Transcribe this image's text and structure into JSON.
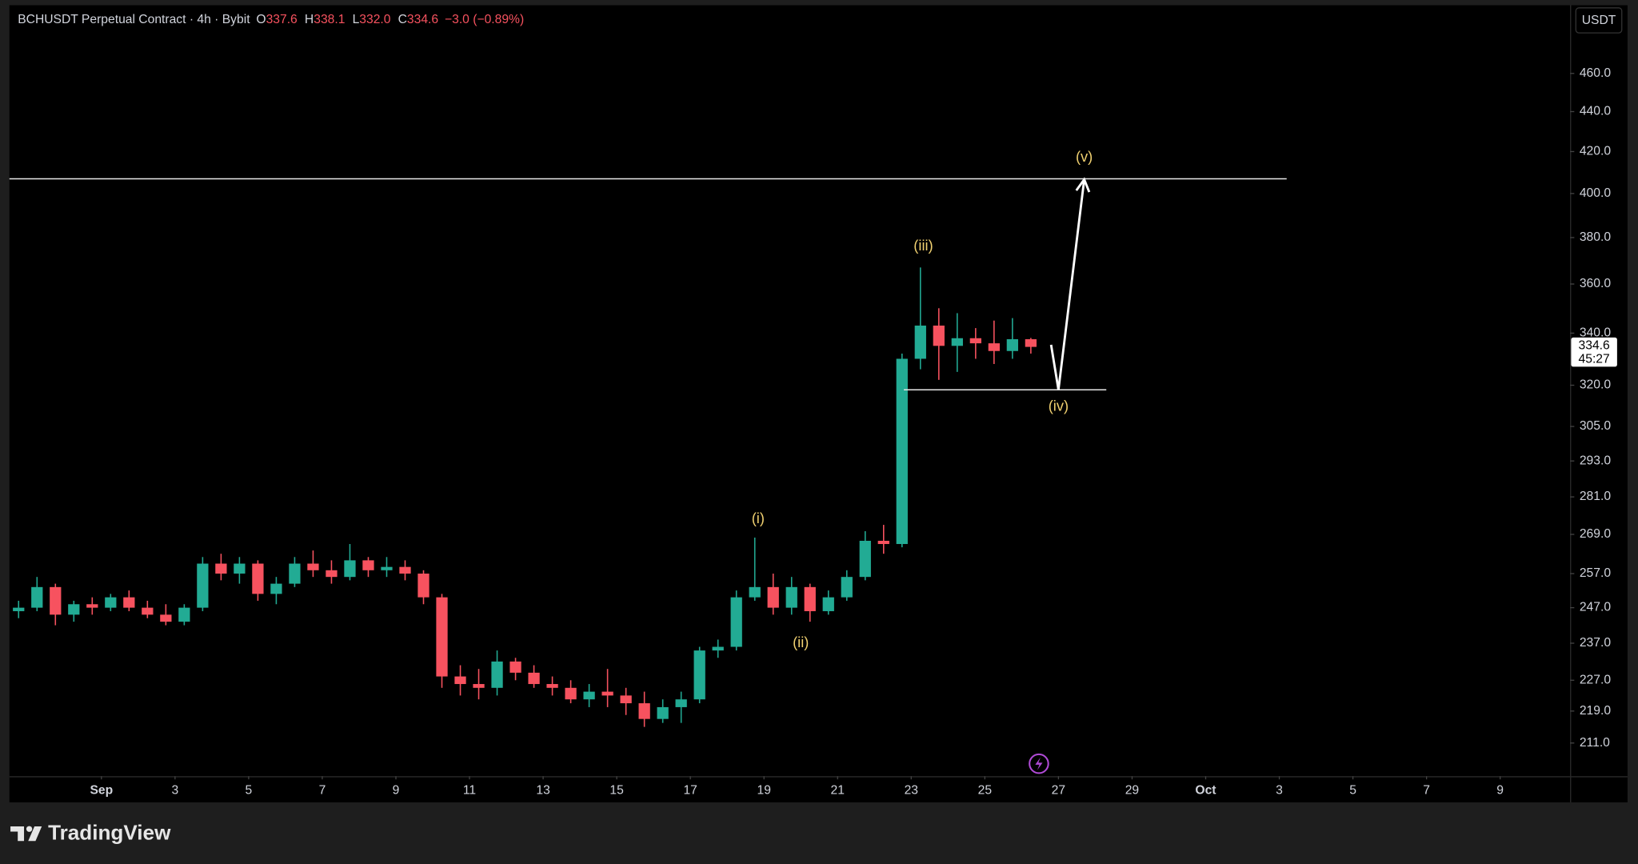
{
  "header": {
    "title": "BCHUSDT Perpetual Contract · 4h · Bybit",
    "ohlc": [
      {
        "label": "O",
        "value": "337.6"
      },
      {
        "label": "H",
        "value": "338.1"
      },
      {
        "label": "L",
        "value": "332.0"
      },
      {
        "label": "C",
        "value": "334.6"
      }
    ],
    "change": "−3.0 (−0.89%)"
  },
  "chart_data": {
    "type": "candlestick",
    "currency": "USDT",
    "log_scale": true,
    "up_color": "#22ab94",
    "down_color": "#f7525f",
    "x": [
      -1.25,
      -0.75,
      -0.25,
      0.25,
      0.75,
      1.25,
      1.75,
      2.25,
      2.75,
      3.25,
      3.75,
      4.25,
      4.75,
      5.25,
      5.75,
      6.25,
      6.75,
      7.25,
      7.75,
      8.25,
      8.75,
      9.25,
      9.75,
      10.25,
      10.75,
      11.25,
      11.75,
      12.25,
      12.75,
      13.25,
      13.75,
      14.25,
      14.75,
      15.25,
      15.75,
      16.25,
      16.75,
      17.25,
      17.75,
      18.25,
      18.75,
      19.25,
      19.75,
      20.25,
      20.75,
      21.25,
      21.75,
      22.25,
      22.75,
      23.25,
      23.75,
      24.25,
      24.75,
      25.25,
      25.75,
      26.25
    ],
    "open": [
      246,
      247,
      253,
      245,
      248,
      247,
      250,
      247,
      245,
      243,
      247,
      260,
      257,
      260,
      251,
      254,
      260,
      258,
      256,
      261,
      258,
      259,
      257,
      250,
      228,
      226,
      225,
      232,
      229,
      226,
      225,
      222,
      224,
      223,
      221,
      217,
      220,
      222,
      235,
      236,
      250,
      253,
      247,
      253,
      246,
      250,
      256,
      267,
      266,
      330,
      343,
      335,
      338,
      336,
      333,
      337.6
    ],
    "high": [
      249,
      256,
      254,
      249,
      250,
      251,
      252,
      249,
      248,
      248,
      262,
      263,
      262,
      261,
      256,
      262,
      264,
      261,
      266,
      262,
      262,
      261,
      258,
      251,
      231,
      230,
      235,
      233,
      231,
      228,
      227,
      226,
      230,
      225,
      224,
      222,
      224,
      236,
      238,
      252,
      268,
      257,
      256,
      254,
      252,
      258,
      270,
      272,
      332,
      367,
      350,
      348,
      342,
      345,
      346,
      338.1
    ],
    "low": [
      244,
      246,
      242,
      243,
      245,
      246,
      246,
      244,
      242,
      242,
      246,
      255,
      254,
      249,
      248,
      253,
      256,
      254,
      255,
      256,
      256,
      255,
      248,
      225,
      223,
      222,
      223,
      227,
      225,
      223,
      221,
      220,
      220,
      218,
      215,
      216,
      216,
      221,
      233,
      235,
      249,
      245,
      245,
      243,
      245,
      249,
      255,
      263,
      265,
      326,
      322,
      325,
      330,
      328,
      330,
      332.0
    ],
    "close": [
      247,
      253,
      245,
      248,
      247,
      250,
      247,
      245,
      243,
      247,
      260,
      257,
      260,
      251,
      254,
      260,
      258,
      256,
      261,
      258,
      259,
      257,
      250,
      228,
      226,
      225,
      232,
      229,
      226,
      225,
      222,
      224,
      223,
      221,
      217,
      220,
      222,
      235,
      236,
      250,
      253,
      247,
      253,
      246,
      250,
      256,
      267,
      266,
      330,
      343,
      335,
      338,
      336,
      333,
      337.6,
      334.6
    ],
    "xlim": [
      -1.5,
      40.9
    ],
    "xticks": [
      {
        "value": 1,
        "label": "Sep"
      },
      3,
      5,
      7,
      9,
      11,
      13,
      15,
      17,
      19,
      21,
      23,
      25,
      27,
      29,
      {
        "value": 31,
        "label": "Oct"
      },
      {
        "value": 33,
        "label": "3"
      },
      {
        "value": 35,
        "label": "5"
      },
      {
        "value": 37,
        "label": "7"
      },
      {
        "value": 39,
        "label": "9"
      }
    ],
    "ylim": [
      203,
      498
    ],
    "yticks": [
      {
        "value": 211,
        "label": "211.0"
      },
      {
        "value": 219,
        "label": "219.0"
      },
      {
        "value": 227,
        "label": "227.0"
      },
      {
        "value": 237,
        "label": "237.0"
      },
      {
        "value": 247,
        "label": "247.0"
      },
      {
        "value": 257,
        "label": "257.0"
      },
      {
        "value": 269,
        "label": "269.0"
      },
      {
        "value": 281,
        "label": "281.0"
      },
      {
        "value": 293,
        "label": "293.0"
      },
      {
        "value": 305,
        "label": "305.0"
      },
      {
        "value": 320,
        "label": "320.0"
      },
      {
        "value": 340,
        "label": "340.0"
      },
      {
        "value": 360,
        "label": "360.0"
      },
      {
        "value": 380,
        "label": "380.0"
      },
      {
        "value": 400,
        "label": "400.0"
      },
      {
        "value": 420,
        "label": "420.0"
      },
      {
        "value": 440,
        "label": "440.0"
      },
      {
        "value": 460,
        "label": "460.0"
      }
    ],
    "countdown": "45:27",
    "levels": [
      {
        "value": 406.9,
        "x": [
          -1.5,
          33.2
        ]
      },
      {
        "value": 318.3,
        "x": [
          22.8,
          28.3
        ]
      }
    ],
    "arrow": {
      "x": [
        26.8,
        27.0,
        27.7
      ],
      "y": [
        335.4,
        318.3,
        406.6
      ]
    },
    "annotations": [
      {
        "text": "(i)",
        "x": 18.84,
        "y": 273.8
      },
      {
        "text": "(ii)",
        "x": 20.0,
        "y": 237
      },
      {
        "text": "(iii)",
        "x": 23.33,
        "y": 376
      },
      {
        "text": "(iv)",
        "x": 27.0,
        "y": 312
      },
      {
        "text": "(v)",
        "x": 27.7,
        "y": 417
      }
    ]
  },
  "footer": {
    "brand": "TradingView"
  }
}
